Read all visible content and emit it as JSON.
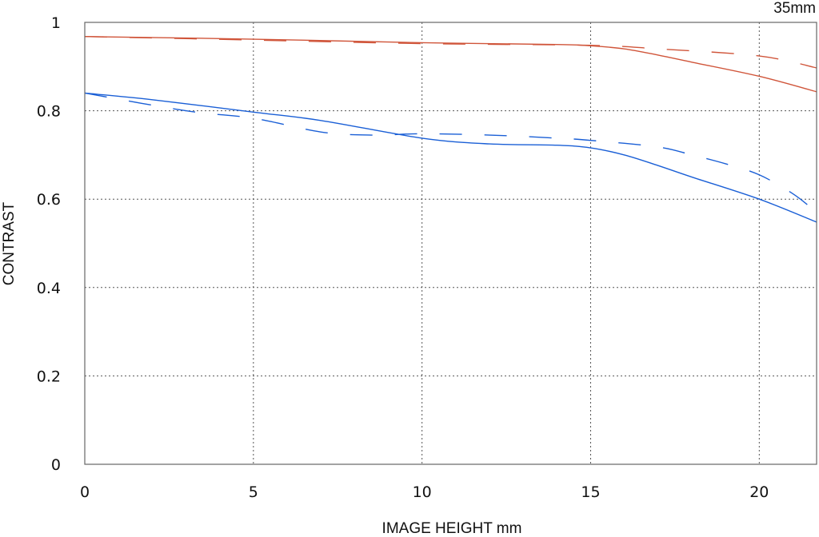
{
  "chart_data": {
    "type": "line",
    "title": "",
    "annotation": "35mm",
    "xlabel": "IMAGE HEIGHT  mm",
    "ylabel": "CONTRAST",
    "xlim": [
      0,
      21.7
    ],
    "ylim": [
      0,
      1
    ],
    "xticks": [
      0,
      5,
      10,
      15,
      20
    ],
    "yticks": [
      0,
      0.2,
      0.4,
      0.6,
      0.8,
      1
    ],
    "ytick_labels": [
      "0",
      "0.2",
      "0.4",
      "0.6",
      "0.8",
      "1"
    ],
    "grid": true,
    "series": [
      {
        "color": "#d0553a",
        "style": "solid",
        "x": [
          0,
          5,
          10,
          14,
          15,
          16,
          17,
          18,
          20,
          21.7
        ],
        "y": [
          0.968,
          0.962,
          0.954,
          0.95,
          0.947,
          0.94,
          0.926,
          0.91,
          0.878,
          0.843
        ]
      },
      {
        "color": "#d0553a",
        "style": "dashed",
        "x": [
          0,
          5,
          10,
          15,
          17,
          20,
          21.7
        ],
        "y": [
          0.968,
          0.96,
          0.952,
          0.948,
          0.94,
          0.924,
          0.897
        ]
      },
      {
        "color": "#1a5fd6",
        "style": "solid",
        "x": [
          0,
          2,
          5,
          7,
          10,
          12,
          14,
          15,
          16,
          17,
          18,
          20,
          21.7
        ],
        "y": [
          0.84,
          0.825,
          0.797,
          0.778,
          0.738,
          0.725,
          0.722,
          0.716,
          0.7,
          0.676,
          0.65,
          0.6,
          0.548
        ]
      },
      {
        "color": "#1a5fd6",
        "style": "dashed",
        "x": [
          0,
          3,
          5,
          7,
          8.5,
          10,
          12,
          14,
          15,
          17,
          18,
          19,
          20,
          21,
          21.7
        ],
        "y": [
          0.84,
          0.8,
          0.783,
          0.752,
          0.745,
          0.748,
          0.745,
          0.738,
          0.733,
          0.718,
          0.7,
          0.68,
          0.655,
          0.612,
          0.57
        ]
      }
    ]
  }
}
